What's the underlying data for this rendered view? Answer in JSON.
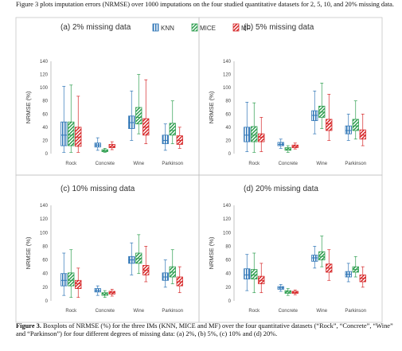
{
  "intro_text": "Figure 3 plots imputation errors (NRMSE) over 1000 imputations on the four studied quantitative datasets for 2, 5, 10, and 20% missing data.",
  "caption": {
    "label": "Figure 3.",
    "text": " Boxplots of NRMSE (%) for the three IMs (KNN, MICE and MF) over the four quantitative datasets (“Rock”, “Concrete”, “Wine” and “Parkinson”) for four different degrees of missing data: (a) 2%, (b) 5%, (c) 10% and (d) 20%."
  },
  "legend": [
    {
      "name": "KNN",
      "color": "#2e75b6",
      "pattern": "vertical"
    },
    {
      "name": "MICE",
      "color": "#2e9e4f",
      "pattern": "diagonal"
    },
    {
      "name": "MF",
      "color": "#d62728",
      "pattern": "diagonal"
    }
  ],
  "chart_data": [
    {
      "type": "boxplot",
      "title": "(a) 2% missing data",
      "ylabel": "NRMSE (%)",
      "ylim": [
        0,
        140
      ],
      "yticks": [
        0,
        20,
        40,
        60,
        80,
        100,
        120,
        140
      ],
      "categories": [
        "Rock",
        "Concrete",
        "Wine",
        "Parkinson"
      ],
      "series": [
        {
          "name": "KNN",
          "boxes": [
            {
              "whislo": 2,
              "q1": 12,
              "med": 28,
              "q3": 48,
              "whishi": 102
            },
            {
              "whislo": 5,
              "q1": 10,
              "med": 13,
              "q3": 16,
              "whishi": 24
            },
            {
              "whislo": 20,
              "q1": 38,
              "med": 47,
              "q3": 57,
              "whishi": 95
            },
            {
              "whislo": 5,
              "q1": 15,
              "med": 20,
              "q3": 28,
              "whishi": 45
            }
          ]
        },
        {
          "name": "MICE",
          "boxes": [
            {
              "whislo": 2,
              "q1": 12,
              "med": 28,
              "q3": 48,
              "whishi": 104
            },
            {
              "whislo": 2,
              "q1": 3,
              "med": 4,
              "q3": 6,
              "whishi": 8
            },
            {
              "whislo": 30,
              "q1": 45,
              "med": 55,
              "q3": 70,
              "whishi": 120
            },
            {
              "whislo": 15,
              "q1": 28,
              "med": 35,
              "q3": 46,
              "whishi": 80
            }
          ]
        },
        {
          "name": "MF",
          "boxes": [
            {
              "whislo": 2,
              "q1": 11,
              "med": 25,
              "q3": 40,
              "whishi": 87
            },
            {
              "whislo": 6,
              "q1": 9,
              "med": 11,
              "q3": 14,
              "whishi": 18
            },
            {
              "whislo": 15,
              "q1": 28,
              "med": 40,
              "q3": 53,
              "whishi": 112
            },
            {
              "whislo": 8,
              "q1": 14,
              "med": 20,
              "q3": 27,
              "whishi": 40
            }
          ]
        }
      ]
    },
    {
      "type": "boxplot",
      "title": "(b) 5% missing data",
      "ylabel": "NRMSE (%)",
      "ylim": [
        0,
        140
      ],
      "yticks": [
        0,
        20,
        40,
        60,
        80,
        100,
        120,
        140
      ],
      "categories": [
        "Rock",
        "Concrete",
        "Wine",
        "Parkinson"
      ],
      "series": [
        {
          "name": "KNN",
          "boxes": [
            {
              "whislo": 3,
              "q1": 18,
              "med": 28,
              "q3": 40,
              "whishi": 78
            },
            {
              "whislo": 8,
              "q1": 12,
              "med": 14,
              "q3": 17,
              "whishi": 22
            },
            {
              "whislo": 30,
              "q1": 50,
              "med": 58,
              "q3": 65,
              "whishi": 95
            },
            {
              "whislo": 20,
              "q1": 30,
              "med": 35,
              "q3": 42,
              "whishi": 60
            }
          ]
        },
        {
          "name": "MICE",
          "boxes": [
            {
              "whislo": 2,
              "q1": 18,
              "med": 28,
              "q3": 41,
              "whishi": 77
            },
            {
              "whislo": 2,
              "q1": 5,
              "med": 7,
              "q3": 9,
              "whishi": 12
            },
            {
              "whislo": 38,
              "q1": 55,
              "med": 63,
              "q3": 72,
              "whishi": 107
            },
            {
              "whislo": 22,
              "q1": 35,
              "med": 42,
              "q3": 52,
              "whishi": 80
            }
          ]
        },
        {
          "name": "MF",
          "boxes": [
            {
              "whislo": 3,
              "q1": 18,
              "med": 25,
              "q3": 30,
              "whishi": 55
            },
            {
              "whislo": 7,
              "q1": 9,
              "med": 11,
              "q3": 13,
              "whishi": 16
            },
            {
              "whislo": 20,
              "q1": 35,
              "med": 45,
              "q3": 52,
              "whishi": 90
            },
            {
              "whislo": 12,
              "q1": 22,
              "med": 28,
              "q3": 36,
              "whishi": 60
            }
          ]
        }
      ]
    },
    {
      "type": "boxplot",
      "title": "(c) 10% missing data",
      "ylabel": "NRMSE (%)",
      "ylim": [
        0,
        140
      ],
      "yticks": [
        0,
        20,
        40,
        60,
        80,
        100,
        120,
        140
      ],
      "categories": [
        "Rock",
        "Concrete",
        "Wine",
        "Parkinson"
      ],
      "series": [
        {
          "name": "KNN",
          "boxes": [
            {
              "whislo": 8,
              "q1": 22,
              "med": 30,
              "q3": 40,
              "whishi": 70
            },
            {
              "whislo": 8,
              "q1": 13,
              "med": 15,
              "q3": 18,
              "whishi": 22
            },
            {
              "whislo": 38,
              "q1": 55,
              "med": 60,
              "q3": 65,
              "whishi": 85
            },
            {
              "whislo": 20,
              "q1": 30,
              "med": 35,
              "q3": 41,
              "whishi": 60
            }
          ]
        },
        {
          "name": "MICE",
          "boxes": [
            {
              "whislo": 5,
              "q1": 22,
              "med": 30,
              "q3": 41,
              "whishi": 75
            },
            {
              "whislo": 5,
              "q1": 8,
              "med": 10,
              "q3": 12,
              "whishi": 15
            },
            {
              "whislo": 40,
              "q1": 55,
              "med": 62,
              "q3": 70,
              "whishi": 97
            },
            {
              "whislo": 25,
              "q1": 35,
              "med": 42,
              "q3": 50,
              "whishi": 75
            }
          ]
        },
        {
          "name": "MF",
          "boxes": [
            {
              "whislo": 5,
              "q1": 18,
              "med": 25,
              "q3": 30,
              "whishi": 48
            },
            {
              "whislo": 7,
              "q1": 10,
              "med": 12,
              "q3": 14,
              "whishi": 17
            },
            {
              "whislo": 28,
              "q1": 38,
              "med": 45,
              "q3": 52,
              "whishi": 80
            },
            {
              "whislo": 12,
              "q1": 22,
              "med": 28,
              "q3": 35,
              "whishi": 50
            }
          ]
        }
      ]
    },
    {
      "type": "boxplot",
      "title": "(d) 20% missing data",
      "ylabel": "NRMSE (%)",
      "ylim": [
        0,
        140
      ],
      "yticks": [
        0,
        20,
        40,
        60,
        80,
        100,
        120,
        140
      ],
      "categories": [
        "Rock",
        "Concrete",
        "Wine",
        "Parkinson"
      ],
      "series": [
        {
          "name": "KNN",
          "boxes": [
            {
              "whislo": 15,
              "q1": 32,
              "med": 38,
              "q3": 47,
              "whishi": 68
            },
            {
              "whislo": 14,
              "q1": 17,
              "med": 19,
              "q3": 21,
              "whishi": 24
            },
            {
              "whislo": 48,
              "q1": 58,
              "med": 63,
              "q3": 67,
              "whishi": 80
            },
            {
              "whislo": 28,
              "q1": 35,
              "med": 39,
              "q3": 43,
              "whishi": 55
            }
          ]
        },
        {
          "name": "MICE",
          "boxes": [
            {
              "whislo": 12,
              "q1": 32,
              "med": 38,
              "q3": 46,
              "whishi": 70
            },
            {
              "whislo": 8,
              "q1": 11,
              "med": 13,
              "q3": 15,
              "whishi": 18
            },
            {
              "whislo": 50,
              "q1": 60,
              "med": 65,
              "q3": 72,
              "whishi": 95
            },
            {
              "whislo": 35,
              "q1": 42,
              "med": 46,
              "q3": 50,
              "whishi": 65
            }
          ]
        },
        {
          "name": "MF",
          "boxes": [
            {
              "whislo": 12,
              "q1": 25,
              "med": 30,
              "q3": 36,
              "whishi": 55
            },
            {
              "whislo": 9,
              "q1": 11,
              "med": 12,
              "q3": 14,
              "whishi": 16
            },
            {
              "whislo": 30,
              "q1": 42,
              "med": 48,
              "q3": 54,
              "whishi": 75
            },
            {
              "whislo": 20,
              "q1": 28,
              "med": 33,
              "q3": 38,
              "whishi": 50
            }
          ]
        }
      ]
    }
  ]
}
